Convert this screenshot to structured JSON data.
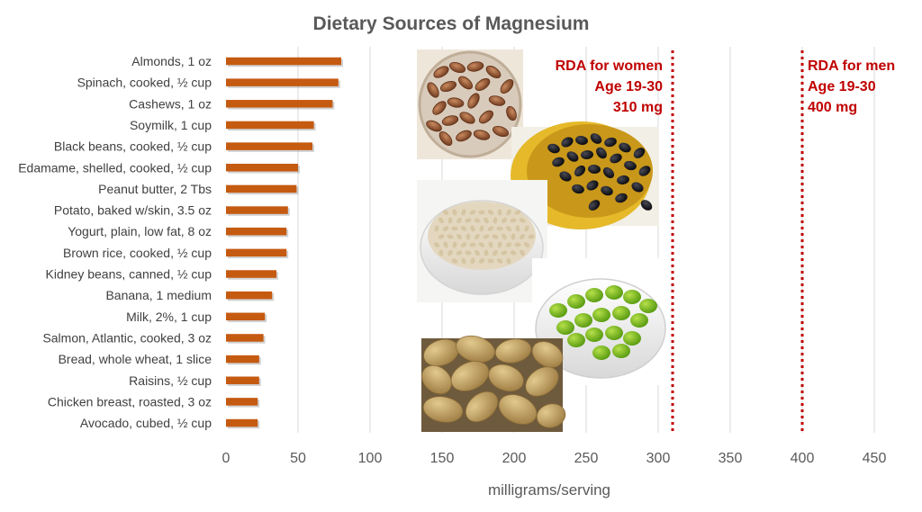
{
  "chart_data": {
    "type": "bar",
    "orientation": "horizontal",
    "title": "Dietary Sources of Magnesium",
    "xlabel": "milligrams/serving",
    "ylabel": "",
    "xlim": [
      0,
      475
    ],
    "x_ticks": [
      0,
      50,
      100,
      150,
      200,
      250,
      300,
      350,
      400,
      450
    ],
    "grid": "vertical",
    "legend": "none",
    "bar_color": "#c55a11",
    "categories": [
      "Almonds, 1 oz",
      "Spinach, cooked, ½ cup",
      "Cashews, 1 oz",
      "Soymilk, 1 cup",
      "Black beans, cooked, ½ cup",
      "Edamame, shelled, cooked, ½ cup",
      "Peanut butter, 2 Tbs",
      "Potato, baked w/skin, 3.5 oz",
      "Yogurt, plain, low fat, 8 oz",
      "Brown rice, cooked, ½ cup",
      "Kidney beans, canned, ½ cup",
      "Banana, 1 medium",
      "Milk, 2%, 1 cup",
      "Salmon, Atlantic, cooked, 3 oz",
      "Bread, whole wheat, 1 slice",
      "Raisins, ½ cup",
      "Chicken breast, roasted, 3 oz",
      "Avocado, cubed, ½ cup"
    ],
    "values": [
      80,
      78,
      74,
      61,
      60,
      50,
      49,
      43,
      42,
      42,
      35,
      32,
      27,
      26,
      23,
      23,
      22,
      22
    ],
    "reference_lines": [
      {
        "value": 310,
        "color": "#c00000",
        "lines": [
          "RDA for women",
          "Age 19-30",
          "310 mg"
        ],
        "label_align": "right"
      },
      {
        "value": 400,
        "color": "#c00000",
        "lines": [
          "RDA for men",
          "Age 19-30",
          "400 mg"
        ],
        "label_align": "left"
      }
    ],
    "photos": [
      "almonds-photo",
      "black-beans-photo",
      "brown-rice-photo",
      "edamame-photo",
      "potatoes-photo"
    ]
  }
}
